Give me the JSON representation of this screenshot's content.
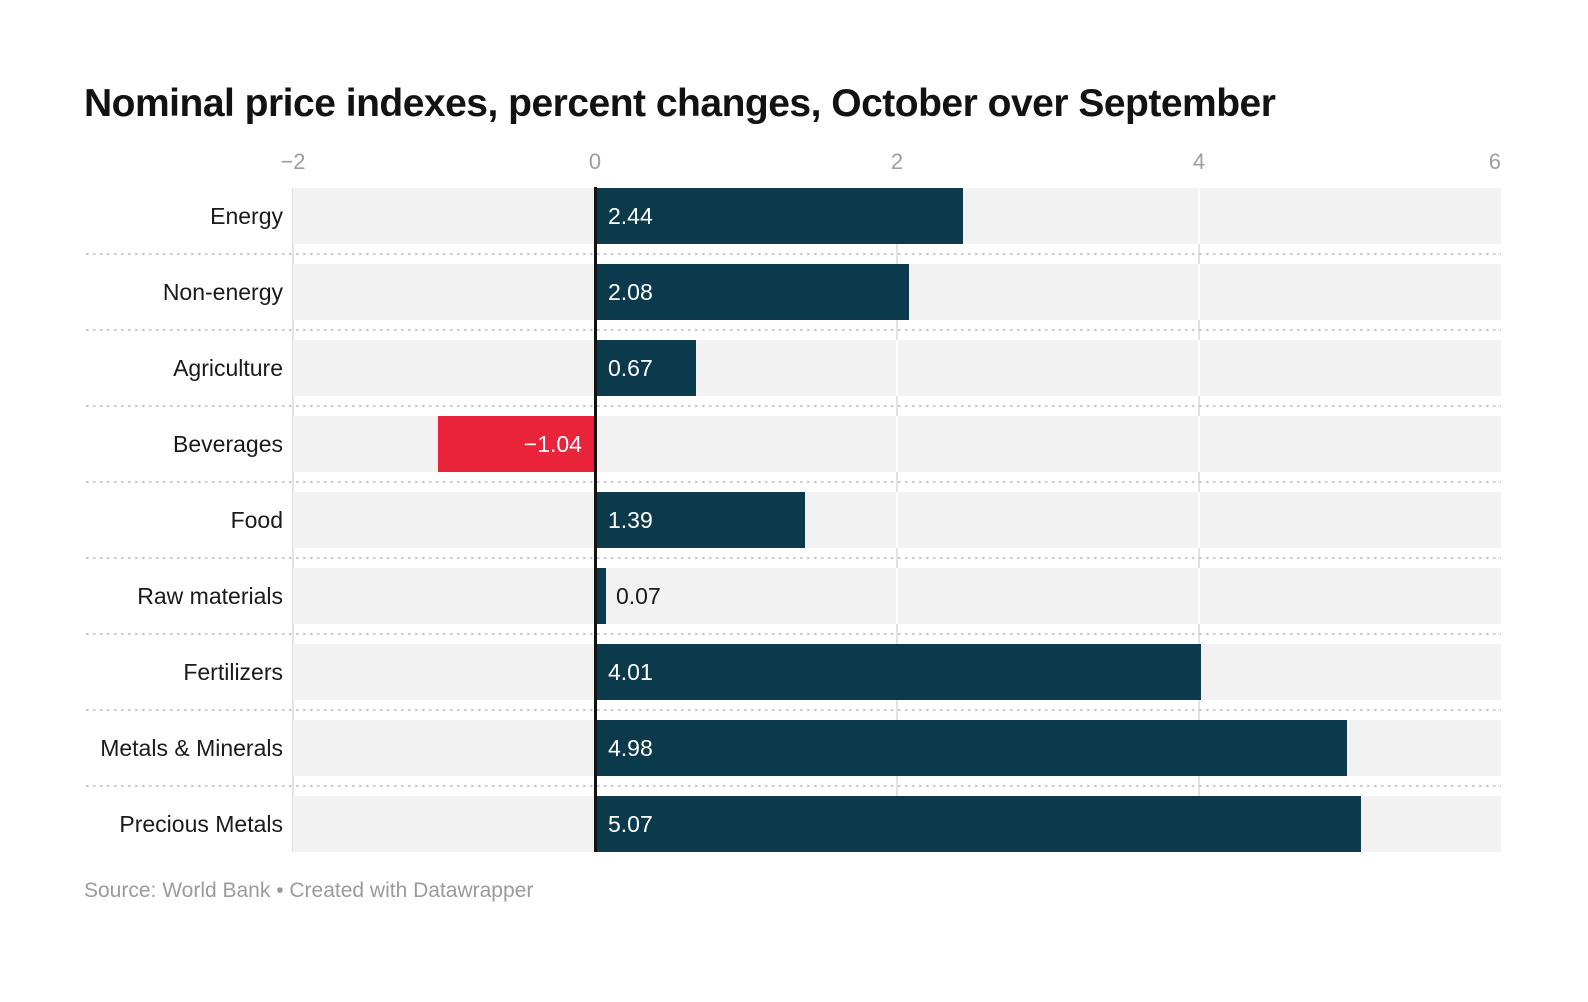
{
  "title": "Nominal price indexes, percent changes, October over September",
  "source_note": "Source: World Bank • Created with Datawrapper",
  "chart_data": {
    "type": "bar",
    "orientation": "horizontal",
    "title": "Nominal price indexes, percent changes, October over September",
    "categories": [
      "Energy",
      "Non-energy",
      "Agriculture",
      "Beverages",
      "Food",
      "Raw materials",
      "Fertilizers",
      "Metals & Minerals",
      "Precious Metals"
    ],
    "values": [
      2.44,
      2.08,
      0.67,
      -1.04,
      1.39,
      0.07,
      4.01,
      4.98,
      5.07
    ],
    "value_labels": [
      "2.44",
      "2.08",
      "0.67",
      "−1.04",
      "1.39",
      "0.07",
      "4.01",
      "4.98",
      "5.07"
    ],
    "xlim": [
      -2,
      6
    ],
    "x_ticks": [
      {
        "value": -2,
        "label": "−2"
      },
      {
        "value": 0,
        "label": "0"
      },
      {
        "value": 2,
        "label": "2"
      },
      {
        "value": 4,
        "label": "4"
      },
      {
        "value": 6,
        "label": "6"
      }
    ],
    "grid": "vertical gridlines at ticks, dotted separators between rows, solid zero baseline",
    "legend_position": "none"
  },
  "colors": {
    "bar_positive": "#0c3a4d",
    "bar_negative": "#e8233a",
    "row_band": "#f2f2f2",
    "grid_on_white": "#e2e2e2",
    "grid_on_band": "#ffffff",
    "zero_line": "#131313",
    "separator_dots": "#c9c9c9",
    "tick_label": "#9e9e9e",
    "category_label": "#1a1a1a",
    "value_label_light": "#ffffff",
    "value_label_dark": "#1a1a1a",
    "source_text": "#9b9b9b",
    "title_text": "#121212",
    "background": "#ffffff"
  }
}
